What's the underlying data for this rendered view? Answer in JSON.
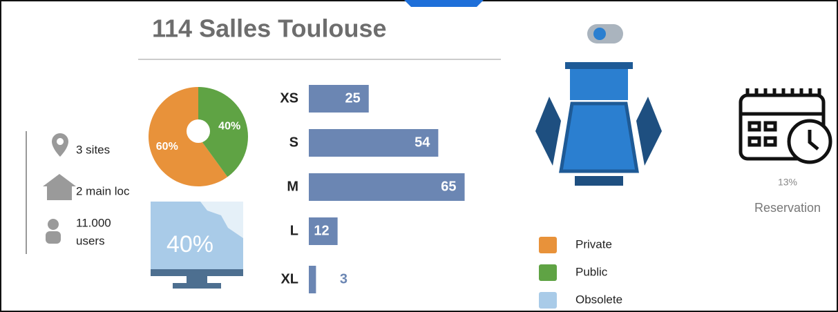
{
  "header": {
    "title": "114 Salles Toulouse"
  },
  "stats": [
    "3 sites",
    "2 main loc",
    "11.000",
    "users"
  ],
  "chart_data": [
    {
      "type": "pie",
      "categories": [
        "Private",
        "Public"
      ],
      "values": [
        60,
        40
      ],
      "value_labels": [
        "60%",
        "40%"
      ],
      "colors": [
        "#e8923a",
        "#5fa344"
      ]
    },
    {
      "type": "hbar",
      "categories": [
        "XS",
        "S",
        "M",
        "L",
        "XL"
      ],
      "values": [
        25,
        54,
        65,
        12,
        3
      ],
      "color": "#6b86b3"
    }
  ],
  "obsolete": {
    "name": "Obsolete",
    "value": 40,
    "value_label": "40%",
    "color": "#a9cbe8"
  },
  "reservation": {
    "value": 13,
    "value_label": "13%",
    "label": "Reservation"
  }
}
